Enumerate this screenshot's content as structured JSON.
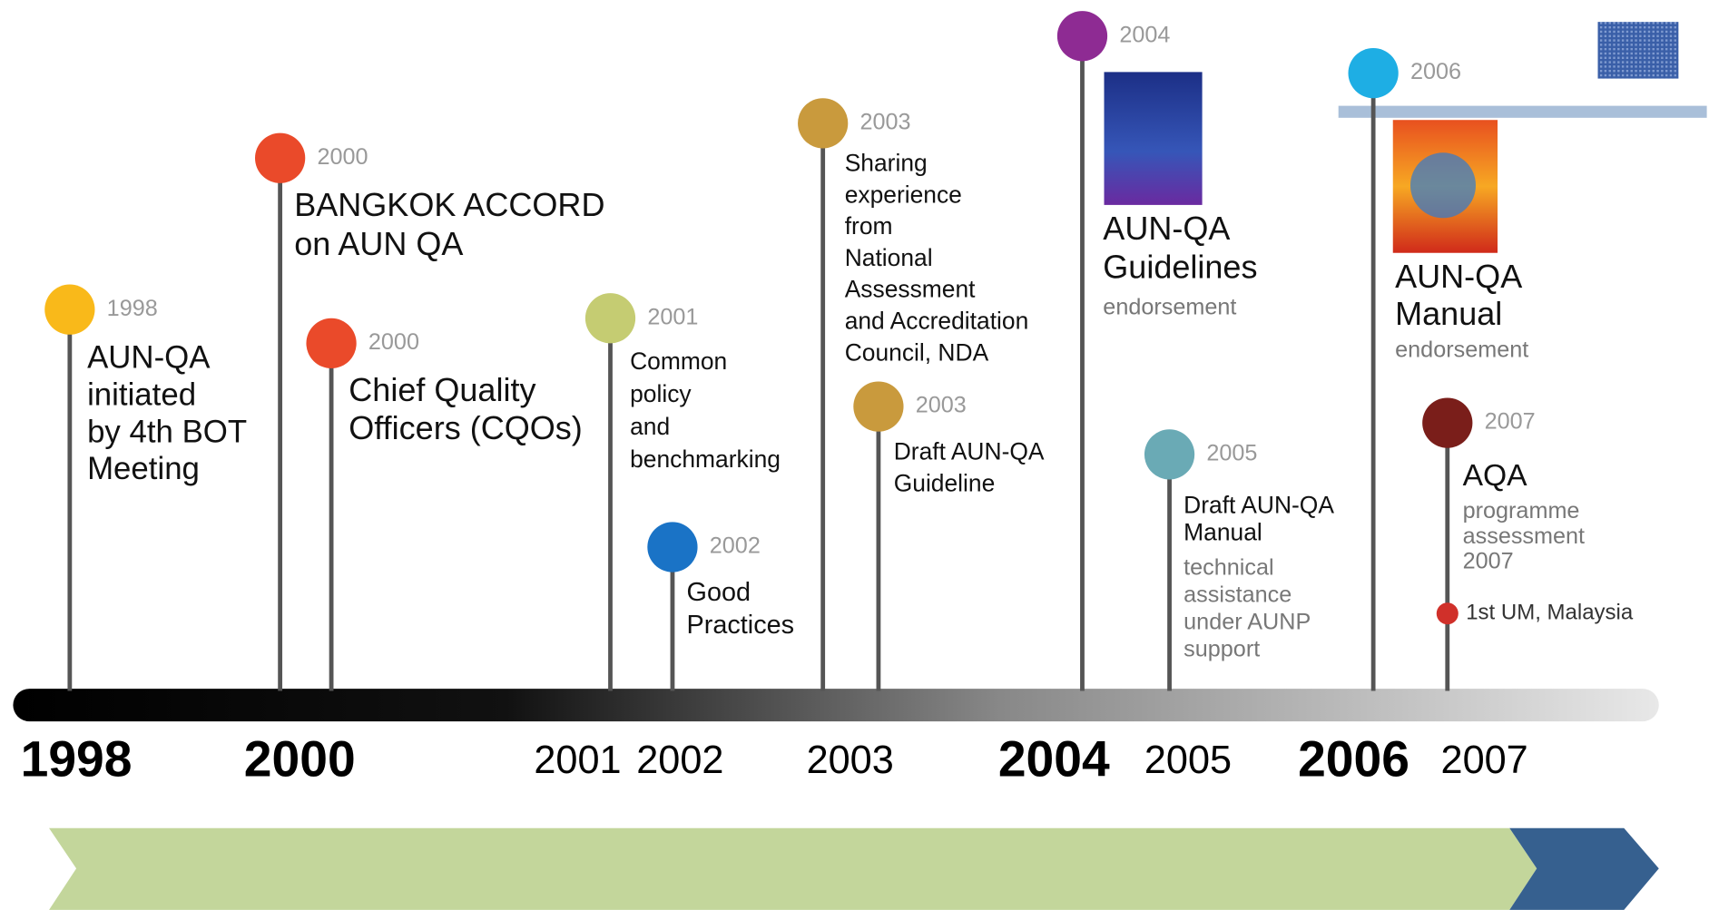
{
  "events": [
    {
      "year": "1998",
      "lines": [
        "AUN-QA",
        "initiated",
        "by 4th BOT",
        "Meeting"
      ],
      "notes": []
    },
    {
      "year": "2000",
      "lines": [
        "BANGKOK ACCORD",
        "on AUN QA"
      ],
      "notes": []
    },
    {
      "year": "2000",
      "lines": [
        "Chief Quality",
        "Officers (CQOs)"
      ],
      "notes": []
    },
    {
      "year": "2001",
      "lines": [
        "Common",
        "policy",
        "and",
        "benchmarking"
      ],
      "notes": []
    },
    {
      "year": "2002",
      "lines": [
        "Good",
        "Practices"
      ],
      "notes": []
    },
    {
      "year": "2003",
      "lines": [
        "Sharing",
        "experience",
        "from",
        "National",
        "Assessment",
        "and Accreditation",
        "Council, NDA"
      ],
      "notes": []
    },
    {
      "year": "2003",
      "lines": [
        "Draft AUN-QA",
        "Guideline"
      ],
      "notes": []
    },
    {
      "year": "2004",
      "lines": [
        "AUN-QA",
        "Guidelines"
      ],
      "notes": [
        "endorsement"
      ]
    },
    {
      "year": "2005",
      "lines": [
        "Draft AUN-QA",
        "Manual"
      ],
      "notes": [
        "technical",
        "assistance",
        "under AUNP",
        "support"
      ]
    },
    {
      "year": "2006",
      "lines": [
        "AUN-QA",
        "Manual"
      ],
      "notes": [
        "endorsement"
      ]
    },
    {
      "year": "2007",
      "lines": [
        "AQA"
      ],
      "notes": [
        "programme",
        "assessment",
        "2007"
      ]
    }
  ],
  "sub_event": "1st UM, Malaysia",
  "axis_years": [
    "1998",
    "2000",
    "2001",
    "2002",
    "2003",
    "2004",
    "2005",
    "2006",
    "2007"
  ]
}
